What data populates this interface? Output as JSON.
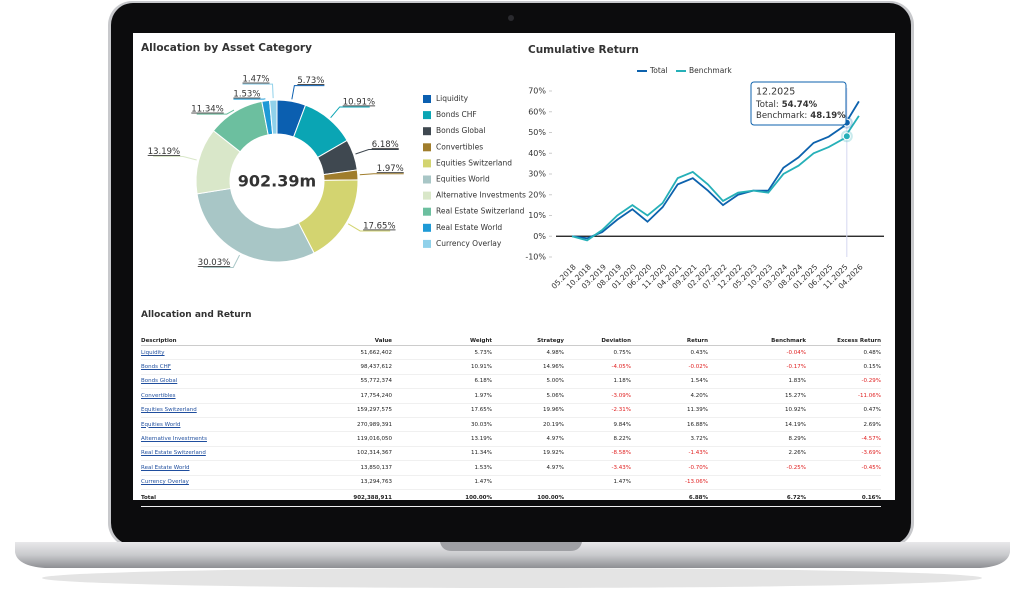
{
  "chart_data": [
    {
      "type": "pie",
      "title": "Allocation by Asset Category",
      "center_label": "902.39m",
      "categories": [
        "Liquidity",
        "Bonds CHF",
        "Bonds Global",
        "Convertibles",
        "Equities Switzerland",
        "Equities World",
        "Alternative Investments",
        "Real Estate Switzerland",
        "Real Estate World",
        "Currency Overlay"
      ],
      "values": [
        5.73,
        10.91,
        6.18,
        1.97,
        17.65,
        30.03,
        13.19,
        11.34,
        1.53,
        1.47
      ],
      "value_labels": [
        "5.73%",
        "10.91%",
        "6.18%",
        "1.97%",
        "17.65%",
        "30.03%",
        "13.19%",
        "11.34%",
        "1.53%",
        "1.47%"
      ],
      "colors": [
        "#0b5fb0",
        "#0aa5b4",
        "#3f4850",
        "#a07d2c",
        "#d3d470",
        "#a8c6c6",
        "#d9e7c9",
        "#6cbf9f",
        "#1e9ad6",
        "#90d1ea"
      ],
      "legend": "right"
    },
    {
      "type": "line",
      "title": "Cumulative Return",
      "categories": [
        "05.2018",
        "10.2018",
        "03.2019",
        "08.2019",
        "01.2020",
        "06.2020",
        "11.2020",
        "04.2021",
        "09.2021",
        "02.2022",
        "07.2022",
        "12.2022",
        "05.2023",
        "10.2023",
        "03.2024",
        "08.2024",
        "01.2025",
        "06.2025",
        "11.2025",
        "04.2026"
      ],
      "series": [
        {
          "name": "Total",
          "color": "#0d62ad",
          "values": [
            0,
            -1,
            2,
            8,
            13,
            7,
            14,
            25,
            28,
            22,
            15,
            20,
            22,
            22,
            33,
            38,
            45,
            48,
            53,
            65
          ]
        },
        {
          "name": "Benchmark",
          "color": "#26b0b8",
          "values": [
            0,
            -2,
            3,
            10,
            15,
            10,
            16,
            28,
            31,
            25,
            17,
            21,
            22,
            21,
            30,
            34,
            40,
            43,
            47,
            58
          ]
        }
      ],
      "ylim": [
        -10,
        70
      ],
      "yticks": [
        {
          "value": -10,
          "label": "-10%"
        },
        {
          "value": 0,
          "label": "0%"
        },
        {
          "value": 10,
          "label": "10%"
        },
        {
          "value": 20,
          "label": "20%"
        },
        {
          "value": 30,
          "label": "30%"
        },
        {
          "value": 40,
          "label": "40%"
        },
        {
          "value": 50,
          "label": "50%"
        },
        {
          "value": 60,
          "label": "60%"
        },
        {
          "value": 70,
          "label": "70%"
        }
      ],
      "grid": false,
      "legend": "top",
      "tooltip": {
        "x": "12.2025",
        "items": [
          {
            "label": "Total:",
            "value": 54.74,
            "value_label": "54.74%"
          },
          {
            "label": "Benchmark:",
            "value": 48.19,
            "value_label": "48.19%"
          }
        ]
      }
    }
  ],
  "table": {
    "title": "Allocation and Return",
    "columns": [
      "Description",
      "Value",
      "Weight",
      "Strategy",
      "Deviation",
      "Return",
      "Benchmark",
      "Excess Return"
    ],
    "rows": [
      [
        "Liquidity",
        "51,662,402",
        "5.73%",
        "4.98%",
        "0.75%",
        "0.43%",
        "-0.04%",
        "0.48%"
      ],
      [
        "Bonds CHF",
        "98,437,612",
        "10.91%",
        "14.96%",
        "-4.05%",
        "-0.02%",
        "-0.17%",
        "0.15%"
      ],
      [
        "Bonds Global",
        "55,772,374",
        "6.18%",
        "5.00%",
        "1.18%",
        "1.54%",
        "1.83%",
        "-0.29%"
      ],
      [
        "Convertibles",
        "17,754,240",
        "1.97%",
        "5.06%",
        "-3.09%",
        "4.20%",
        "15.27%",
        "-11.06%"
      ],
      [
        "Equities Switzerland",
        "159,297,575",
        "17.65%",
        "19.96%",
        "-2.31%",
        "11.39%",
        "10.92%",
        "0.47%"
      ],
      [
        "Equities World",
        "270,989,391",
        "30.03%",
        "20.19%",
        "9.84%",
        "16.88%",
        "14.19%",
        "2.69%"
      ],
      [
        "Alternative Investments",
        "119,016,050",
        "13.19%",
        "4.97%",
        "8.22%",
        "3.72%",
        "8.29%",
        "-4.57%"
      ],
      [
        "Real Estate Switzerland",
        "102,314,367",
        "11.34%",
        "19.92%",
        "-8.58%",
        "-1.43%",
        "2.26%",
        "-3.69%"
      ],
      [
        "Real Estate World",
        "13,850,137",
        "1.53%",
        "4.97%",
        "-3.43%",
        "-0.70%",
        "-0.25%",
        "-0.45%"
      ],
      [
        "Currency Overlay",
        "13,294,763",
        "1.47%",
        null,
        "1.47%",
        "-13.06%",
        null,
        null
      ]
    ],
    "total": [
      "Total",
      "902,388,911",
      "100.00%",
      "100.00%",
      null,
      "6.88%",
      "6.72%",
      "0.16%"
    ]
  }
}
